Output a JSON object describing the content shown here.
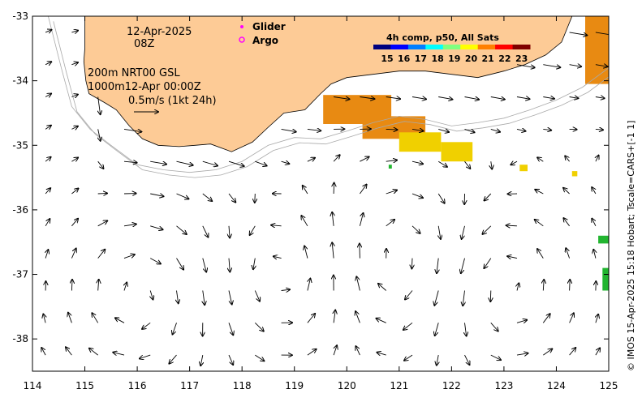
{
  "map": {
    "title_date": "12-Apr-2025",
    "title_time": "08Z",
    "info_line1": "200m  NRT00 GSL",
    "info_line2": "1000m12-Apr 00:00Z",
    "scale_label": "0.5m/s (1kt 24h)",
    "credit": "© IMOS 15-Apr-2025 15:18 Hobart; Tscale=CARS+[-1 1]",
    "legend": [
      {
        "label": "Glider",
        "color": "#ff00ff",
        "marker": "dot"
      },
      {
        "label": "Argo",
        "color": "#ff00ff",
        "marker": "ring"
      }
    ],
    "colorbar": {
      "title": "4h comp, p50, All Sats",
      "ticks": [
        "15",
        "16",
        "17",
        "18",
        "19",
        "20",
        "21",
        "22",
        "23"
      ],
      "colors": [
        "#00007f",
        "#0000ff",
        "#007fff",
        "#00ffff",
        "#7fff7f",
        "#ffff00",
        "#ff7f00",
        "#ff0000",
        "#7f0000"
      ]
    },
    "colors": {
      "land": "#fdcb96",
      "sst_orange": "#e88a12",
      "sst_yellow": "#f0d000",
      "sst_green": "#22b530",
      "isobath": "#a9a9a9"
    }
  },
  "chart_data": {
    "type": "map",
    "x_ticks": [
      "114",
      "115",
      "116",
      "117",
      "118",
      "119",
      "120",
      "121",
      "122",
      "123",
      "124",
      "125"
    ],
    "y_ticks": [
      "-33",
      "-34",
      "-35",
      "-36",
      "-37",
      "-38"
    ],
    "xlim": [
      114,
      125
    ],
    "ylim": [
      -38.5,
      -33
    ],
    "coastline_lonlat": [
      [
        115.0,
        -33.0
      ],
      [
        115.0,
        -33.5
      ],
      [
        114.98,
        -33.7
      ],
      [
        115.02,
        -34.0
      ],
      [
        115.08,
        -34.2
      ],
      [
        115.4,
        -34.35
      ],
      [
        115.6,
        -34.45
      ],
      [
        115.85,
        -34.7
      ],
      [
        116.1,
        -34.9
      ],
      [
        116.4,
        -35.0
      ],
      [
        116.8,
        -35.02
      ],
      [
        117.1,
        -35.0
      ],
      [
        117.4,
        -34.98
      ],
      [
        117.8,
        -35.1
      ],
      [
        118.2,
        -34.95
      ],
      [
        118.5,
        -34.72
      ],
      [
        118.8,
        -34.5
      ],
      [
        119.2,
        -34.45
      ],
      [
        119.5,
        -34.2
      ],
      [
        119.7,
        -34.05
      ],
      [
        120.0,
        -33.95
      ],
      [
        120.5,
        -33.9
      ],
      [
        121.0,
        -33.85
      ],
      [
        121.5,
        -33.85
      ],
      [
        122.0,
        -33.9
      ],
      [
        122.5,
        -33.95
      ],
      [
        123.0,
        -33.85
      ],
      [
        123.4,
        -33.75
      ],
      [
        123.8,
        -33.6
      ],
      [
        124.1,
        -33.4
      ],
      [
        124.2,
        -33.2
      ],
      [
        124.3,
        -33.0
      ]
    ],
    "isobath_lonlat": [
      [
        114.3,
        -33.0
      ],
      [
        114.55,
        -33.8
      ],
      [
        114.75,
        -34.4
      ],
      [
        115.1,
        -34.75
      ],
      [
        115.5,
        -35.0
      ],
      [
        116.0,
        -35.3
      ],
      [
        116.5,
        -35.38
      ],
      [
        117.0,
        -35.42
      ],
      [
        117.5,
        -35.38
      ],
      [
        118.0,
        -35.25
      ],
      [
        118.5,
        -35.0
      ],
      [
        119.0,
        -34.88
      ],
      [
        119.5,
        -34.9
      ],
      [
        120.0,
        -34.78
      ],
      [
        120.5,
        -34.65
      ],
      [
        121.0,
        -34.55
      ],
      [
        121.5,
        -34.6
      ],
      [
        122.0,
        -34.7
      ],
      [
        122.5,
        -34.65
      ],
      [
        123.0,
        -34.58
      ],
      [
        123.5,
        -34.45
      ],
      [
        124.0,
        -34.3
      ],
      [
        124.5,
        -34.1
      ],
      [
        125.0,
        -33.8
      ]
    ],
    "sst_patches": [
      {
        "lon": 119.55,
        "lat": -34.22,
        "w": 1.3,
        "h": 0.45,
        "color": "sst_orange"
      },
      {
        "lon": 120.3,
        "lat": -34.55,
        "w": 1.2,
        "h": 0.35,
        "color": "sst_orange"
      },
      {
        "lon": 121.0,
        "lat": -34.8,
        "w": 0.8,
        "h": 0.3,
        "color": "sst_yellow"
      },
      {
        "lon": 121.8,
        "lat": -34.95,
        "w": 0.6,
        "h": 0.3,
        "color": "sst_yellow"
      },
      {
        "lon": 124.55,
        "lat": -33.0,
        "w": 0.45,
        "h": 1.05,
        "color": "sst_orange"
      },
      {
        "lon": 124.8,
        "lat": -36.4,
        "w": 0.2,
        "h": 0.12,
        "color": "sst_green"
      },
      {
        "lon": 124.88,
        "lat": -36.9,
        "w": 0.12,
        "h": 0.35,
        "color": "sst_green"
      },
      {
        "lon": 123.3,
        "lat": -35.3,
        "w": 0.15,
        "h": 0.1,
        "color": "sst_yellow"
      },
      {
        "lon": 124.3,
        "lat": -35.4,
        "w": 0.1,
        "h": 0.08,
        "color": "sst_yellow"
      },
      {
        "lon": 120.8,
        "lat": -35.3,
        "w": 0.06,
        "h": 0.06,
        "color": "sst_green"
      }
    ],
    "current_field": {
      "lon_step": 0.5,
      "lat_step": 0.5,
      "features": [
        {
          "name": "leeuwin_current",
          "path": "coastal_clockwise"
        },
        {
          "name": "offshore_eddies",
          "centers_lonlat": [
            [
              116.0,
              -37.3
            ],
            [
              118.8,
              -37.0
            ],
            [
              121.0,
              -36.8
            ],
            [
              123.0,
              -37.2
            ]
          ]
        }
      ]
    }
  }
}
